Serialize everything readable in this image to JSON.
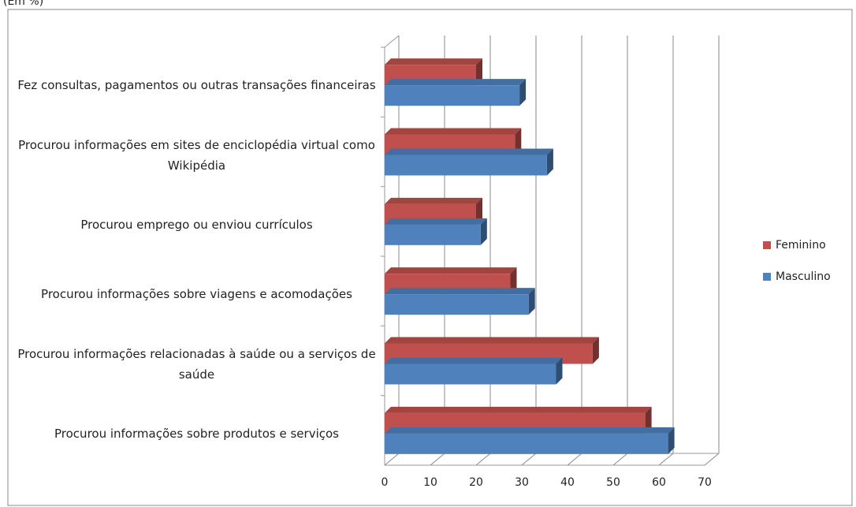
{
  "chart_data": {
    "type": "bar3d",
    "title": "(Em %)",
    "categories": [
      "Fez consultas, pagamentos ou outras transações financeiras",
      "Procurou informações em sites de enciclopédia virtual como Wikipédia",
      "Procurou emprego ou enviou currículos",
      "Procurou informações sobre viagens e acomodações",
      "Procurou informações relacionadas à saúde ou a serviços de saúde",
      "Procurou informações sobre produtos e serviços"
    ],
    "series": [
      {
        "name": "Feminino",
        "color": "#c0504d",
        "values": [
          20,
          28.5,
          20,
          27.5,
          45.5,
          57
        ]
      },
      {
        "name": "Masculino",
        "color": "#4f81bd",
        "values": [
          29.5,
          35.5,
          21,
          31.5,
          37.5,
          62
        ]
      }
    ],
    "xlim": [
      0,
      70
    ],
    "xticks": [
      0,
      10,
      20,
      30,
      40,
      50,
      60,
      70
    ],
    "grid": true,
    "legend": "right"
  }
}
